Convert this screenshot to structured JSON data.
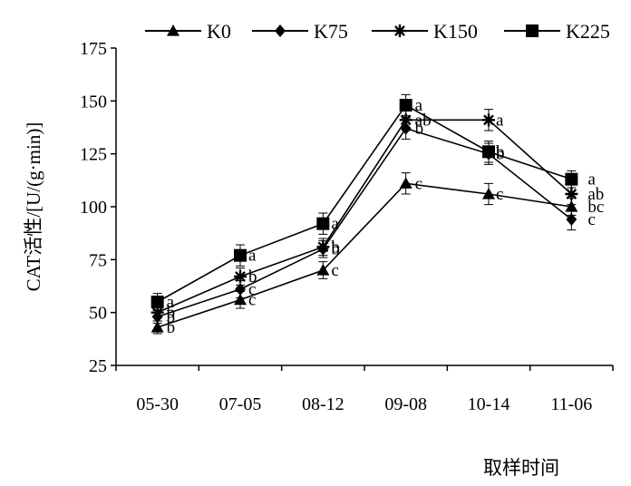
{
  "chart_data": {
    "type": "line",
    "title": "",
    "xlabel": "取样时间",
    "ylabel": "CAT活性/[U/(g·min)]",
    "categories": [
      "05-30",
      "07-05",
      "08-12",
      "09-08",
      "10-14",
      "11-06"
    ],
    "ylim": [
      25,
      175
    ],
    "yticks": [
      25,
      50,
      75,
      100,
      125,
      150,
      175
    ],
    "grid": false,
    "legend_position": "top",
    "series": [
      {
        "name": "K0",
        "marker": "triangle",
        "values": [
          43,
          56,
          70,
          111,
          106,
          100
        ],
        "errors": [
          3,
          4,
          4,
          5,
          5,
          4
        ],
        "labels": [
          "b",
          "c",
          "c",
          "c",
          "c",
          "bc"
        ]
      },
      {
        "name": "K75",
        "marker": "diamond",
        "values": [
          48,
          61,
          80,
          137,
          125,
          94
        ],
        "errors": [
          3,
          4,
          4,
          5,
          5,
          5
        ],
        "labels": [
          "b",
          "c",
          "b",
          "b",
          "b",
          "c"
        ]
      },
      {
        "name": "K150",
        "marker": "star",
        "values": [
          50,
          67,
          81,
          141,
          141,
          106
        ],
        "errors": [
          4,
          4,
          4,
          5,
          5,
          5
        ],
        "labels": [
          "b",
          "b",
          "b",
          "ab",
          "a",
          "ab"
        ]
      },
      {
        "name": "K225",
        "marker": "square",
        "values": [
          55,
          77,
          92,
          148,
          126,
          113
        ],
        "errors": [
          4,
          5,
          5,
          5,
          5,
          4
        ],
        "labels": [
          "a",
          "a",
          "a",
          "a",
          "b",
          "a"
        ]
      }
    ]
  }
}
